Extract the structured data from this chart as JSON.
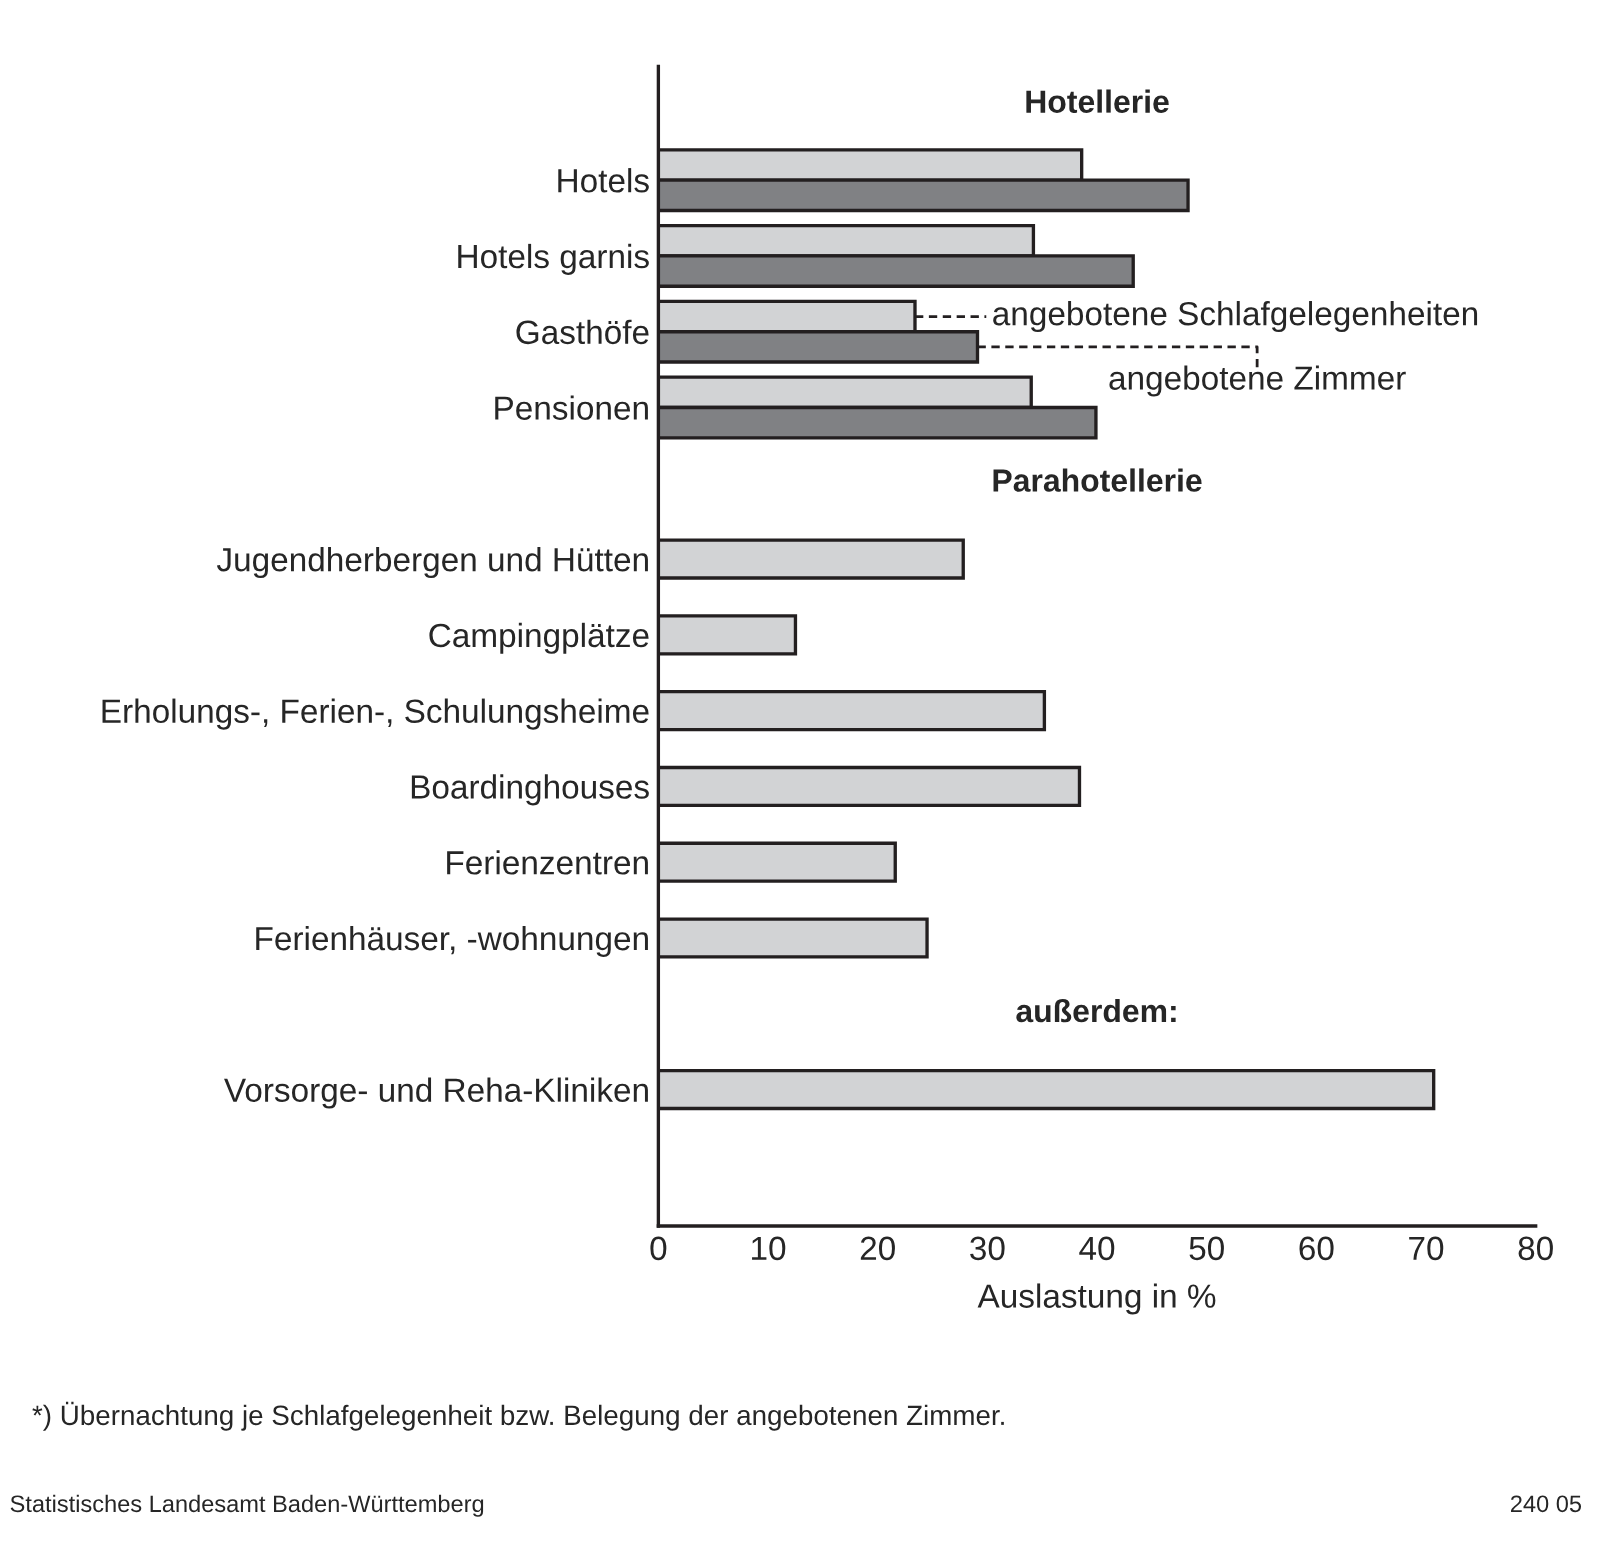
{
  "chart_data": {
    "type": "bar",
    "orientation": "horizontal",
    "categories": [
      null,
      "Hotels",
      "Hotels garnis",
      "Gasthöfe",
      "Pensionen",
      null,
      "Jugendherbergen und Hütten",
      "Campingplätze",
      "Erholungs-, Ferien-, Schulungsheime",
      "Boardinghouses",
      "Ferienzentren",
      "Ferienhäuser, -wohnungen",
      null,
      "Vorsorge- und Reha-Kliniken"
    ],
    "series": [
      {
        "name": "angebotene Schlafgelegenheiten",
        "color": "#d2d3d5",
        "values": [
          null,
          38.6,
          34.2,
          23.4,
          34.0,
          null,
          27.8,
          12.5,
          35.2,
          38.4,
          21.6,
          24.5,
          null,
          70.7
        ]
      },
      {
        "name": "angebotene Zimmer",
        "color": "#808184",
        "values": [
          null,
          48.3,
          43.3,
          29.1,
          39.9,
          null,
          null,
          null,
          null,
          null,
          null,
          null,
          null,
          null
        ]
      }
    ],
    "xlabel": "Auslastung in %",
    "xlim": [
      0,
      80
    ],
    "xticks": [
      0,
      10,
      20,
      30,
      40,
      50,
      60,
      70,
      80
    ],
    "grid": false,
    "annotations": [
      "Hotellerie",
      "Parahotellerie",
      "außerdem:",
      "*) Übernachtung je Schlafgelegenheit bzw. Belegung der angebotenen Zimmer.",
      "Statistisches Landesamt Baden-Württemberg",
      "240 05"
    ]
  }
}
